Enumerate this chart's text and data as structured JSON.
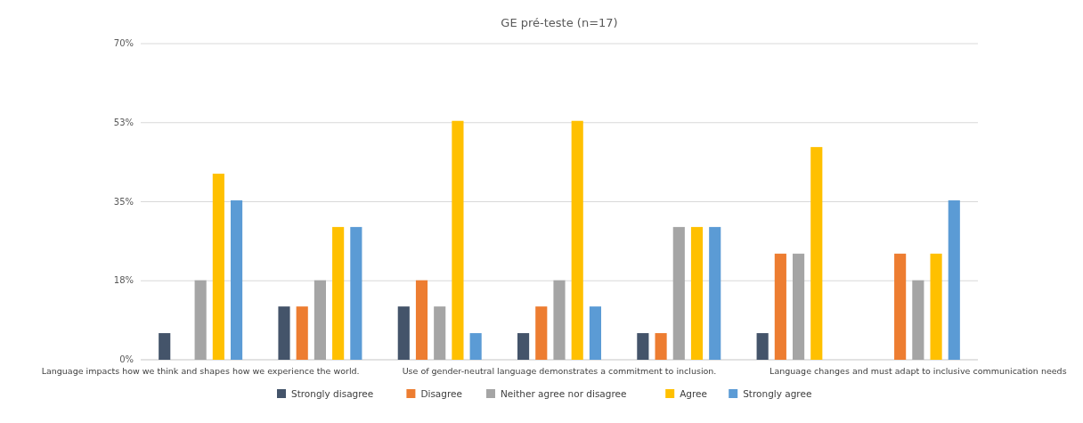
{
  "chart_data": {
    "type": "bar",
    "title": "GE pré-teste (n=17)",
    "categories": [
      "Language impacts how we think and shapes how we experience the world.",
      null,
      null,
      "Use of gender-neutral language demonstrates a commitment to inclusion.",
      null,
      null,
      "Language changes and must adapt to inclusive communication needs"
    ],
    "series": [
      {
        "name": "Strongly disagree",
        "color": "#44546a",
        "values": [
          5.9,
          11.8,
          11.8,
          5.9,
          5.9,
          5.9,
          0
        ]
      },
      {
        "name": "Disagree",
        "color": "#ed7d31",
        "values": [
          0,
          11.8,
          17.6,
          11.8,
          5.9,
          23.5,
          23.5
        ]
      },
      {
        "name": "Neither agree nor disagree",
        "color": "#a5a5a5",
        "values": [
          17.6,
          17.6,
          11.8,
          17.6,
          29.4,
          23.5,
          17.6
        ]
      },
      {
        "name": "Agree",
        "color": "#ffc000",
        "values": [
          41.2,
          29.4,
          52.9,
          52.9,
          29.4,
          47.1,
          23.5
        ]
      },
      {
        "name": "Strongly agree",
        "color": "#5b9bd5",
        "values": [
          35.3,
          29.4,
          5.9,
          11.8,
          29.4,
          0,
          35.3
        ]
      }
    ],
    "ylim": [
      0,
      70
    ],
    "yticks": [
      {
        "value": 0,
        "label": "0%"
      },
      {
        "value": 17.5,
        "label": "18%"
      },
      {
        "value": 35,
        "label": "35%"
      },
      {
        "value": 52.5,
        "label": "53%"
      },
      {
        "value": 70,
        "label": "70%"
      }
    ],
    "grid": "y",
    "legend": "bottom"
  }
}
